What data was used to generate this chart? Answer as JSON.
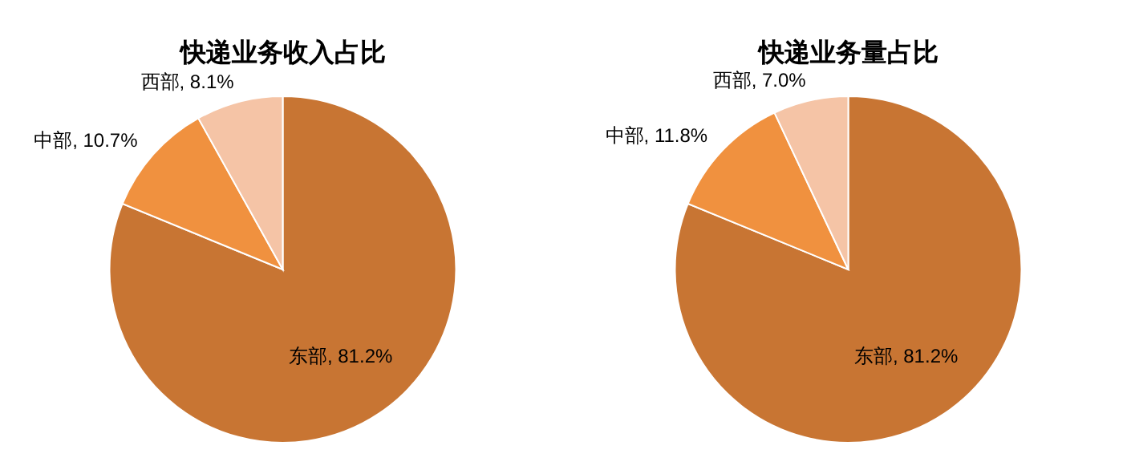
{
  "chart_data": [
    {
      "type": "pie",
      "title": "快递业务收入占比",
      "categories": [
        "东部",
        "中部",
        "西部"
      ],
      "values": [
        81.2,
        10.7,
        8.1
      ],
      "value_labels": [
        ", 81.2%",
        ", 10.7%",
        ", 8.1%"
      ],
      "colors": [
        "#c87533",
        "#f0913f",
        "#f5c4a6"
      ]
    },
    {
      "type": "pie",
      "title": "快递业务量占比",
      "categories": [
        "东部",
        "中部",
        "西部"
      ],
      "values": [
        81.2,
        11.8,
        7.0
      ],
      "value_labels": [
        ", 81.2%",
        ", 11.8%",
        ", 7.0%"
      ],
      "colors": [
        "#c87533",
        "#f0913f",
        "#f5c4a6"
      ]
    }
  ]
}
